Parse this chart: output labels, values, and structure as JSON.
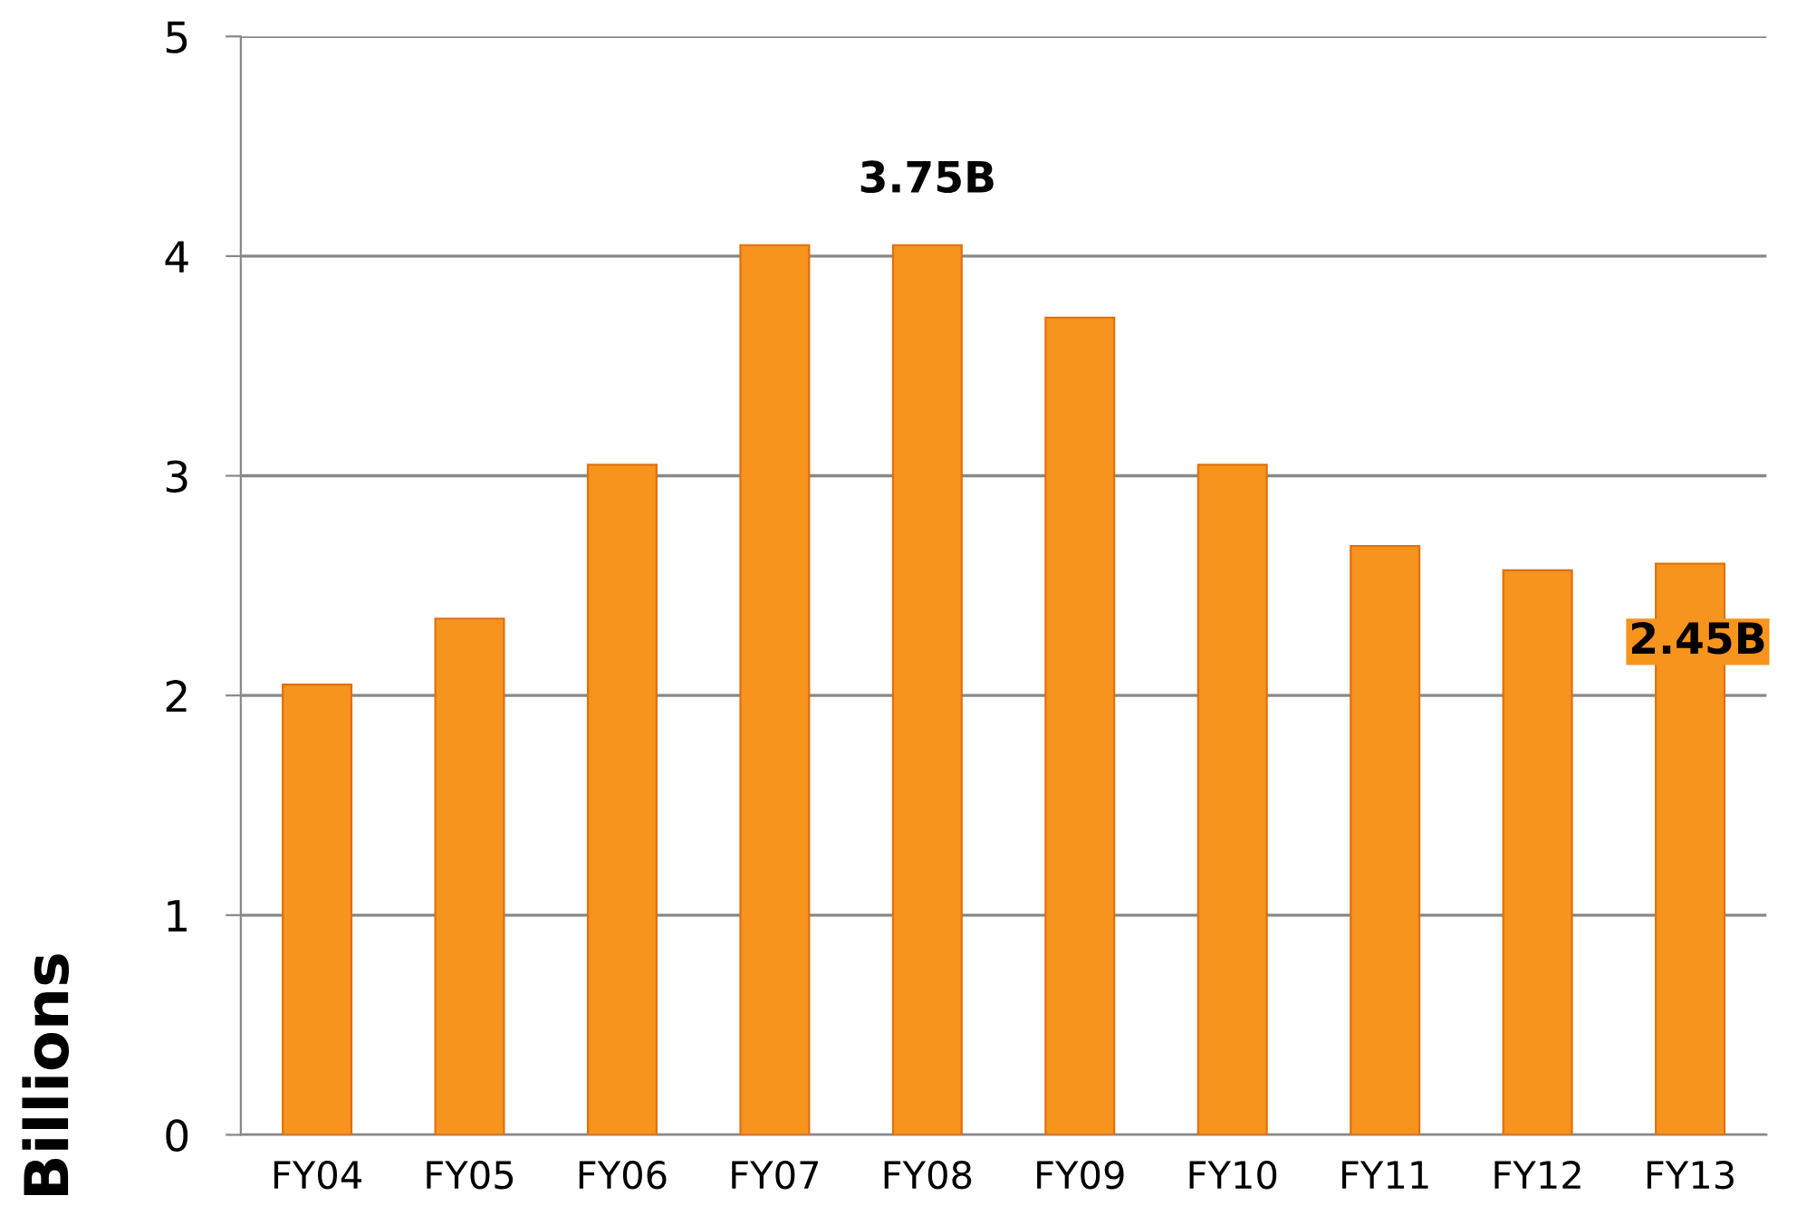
{
  "chart_data": {
    "type": "bar",
    "ylabel": "Billions",
    "categories": [
      "FY04",
      "FY05",
      "FY06",
      "FY07",
      "FY08",
      "FY09",
      "FY10",
      "FY11",
      "FY12",
      "FY13"
    ],
    "values": [
      2.05,
      2.35,
      3.05,
      4.05,
      4.05,
      3.72,
      3.05,
      2.68,
      2.57,
      2.6
    ],
    "color": "#f7941d",
    "ylim": [
      0,
      5
    ],
    "yticks": [
      0,
      1,
      2,
      3,
      4,
      5
    ],
    "grid": "y",
    "annotations": [
      "3.75B",
      "2.45B"
    ]
  }
}
